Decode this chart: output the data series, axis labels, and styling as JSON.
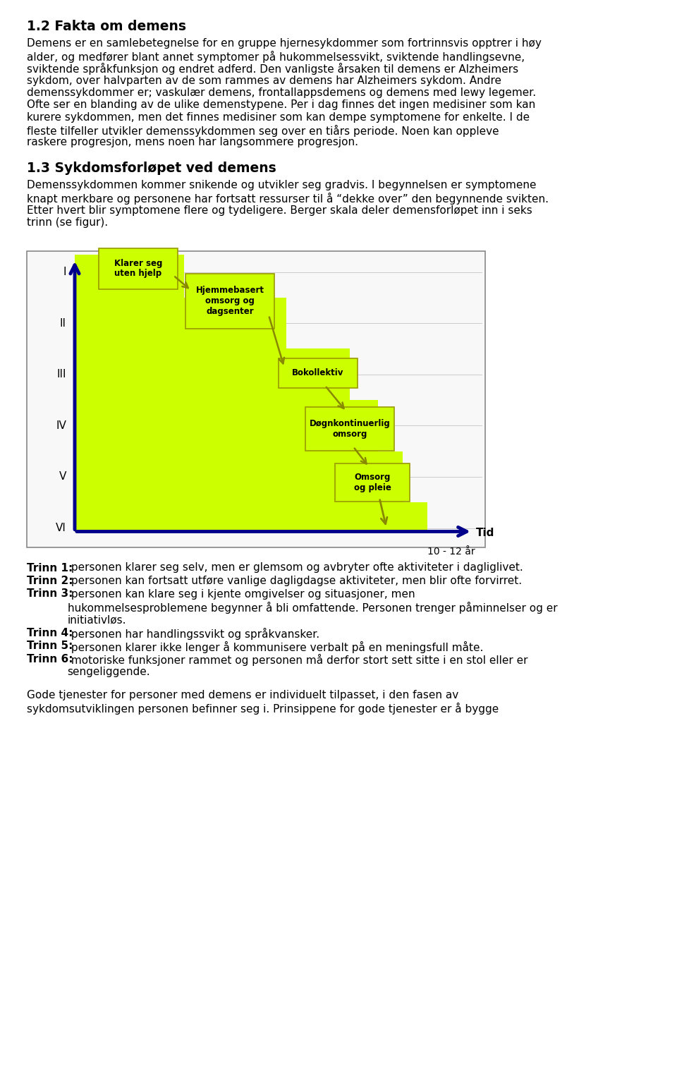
{
  "title_section1": "1.2 Fakta om demens",
  "para1_lines": [
    "Demens er en samlebetegnelse for en gruppe hjernesykdommer som fortrinnsvis opptrer i høy",
    "alder, og medfører blant annet symptomer på hukommelsessvikt, sviktende handlingsevne,",
    "sviktende språkfunksjon og endret adferd. Den vanligste årsaken til demens er Alzheimers",
    "sykdom, over halvparten av de som rammes av demens har Alzheimers sykdom. Andre",
    "demenssykdommer er; vaskulær demens, frontallappsdemens og demens med lewy legemer.",
    "Ofte ser en blanding av de ulike demenstypene. Per i dag finnes det ingen medisiner som kan",
    "kurere sykdommen, men det finnes medisiner som kan dempe symptomene for enkelte. I de",
    "fleste tilfeller utvikler demenssykdommen seg over en tiårs periode. Noen kan oppleve",
    "raskere progresjon, mens noen har langsommere progresjon."
  ],
  "title_section2": "1.3 Sykdomsforløpet ved demens",
  "para2_lines": [
    "Demenssykdommen kommer snikende og utvikler seg gradvis. I begynnelsen er symptomene",
    "knapt merkbare og personene har fortsatt ressurser til å “dekke over” den begynnende svikten.",
    "Etter hvert blir symptomene flere og tydeligere. Berger skala deler demensforløpet inn i seks",
    "trinn (se figur)."
  ],
  "diagram_labels_y": [
    "I",
    "II",
    "III",
    "IV",
    "V",
    "VI"
  ],
  "diagram_tid_label": "Tid",
  "diagram_time_label": "10 - 12 år",
  "trinn_texts": [
    {
      "bold": "Trinn 1:",
      "normal": " personen klarer seg selv, men er glemsom og avbryter ofte aktiviteter i dagliglivet."
    },
    {
      "bold": "Trinn 2:",
      "normal": " personen kan fortsatt utføre vanlige dagligdagse aktiviteter, men blir ofte forvirret."
    },
    {
      "bold": "Trinn 3:",
      "normal": " personen kan klare seg i kjente omgivelser og situasjoner, men"
    },
    {
      "bold": "",
      "normal": "hukommelsesproblemene begynner å bli omfattende. Personen trenger påminnelser og er"
    },
    {
      "bold": "",
      "normal": "initiativløs."
    },
    {
      "bold": "Trinn 4:",
      "normal": " personen har handlingssvikt og språkvansker."
    },
    {
      "bold": "Trinn 5:",
      "normal": " personen klarer ikke lenger å kommunisere verbalt på en meningsfull måte."
    },
    {
      "bold": "Trinn 6:",
      "normal": " motoriske funksjoner rammet og personen må derfor stort sett sitte i en stol eller er"
    },
    {
      "bold": "",
      "normal": "sengeliggende."
    }
  ],
  "para3_lines": [
    "Gode tjenester for personer med demens er individuelt tilpasset, i den fasen av",
    "sykdomsutviklingen personen befinner seg i. Prinsippene for gode tjenester er å bygge"
  ],
  "bg_color": "#ffffff",
  "box_color": "#ccff00",
  "axis_color": "#00008B",
  "text_color": "#000000",
  "diagram_bg": "#f5f5f5"
}
